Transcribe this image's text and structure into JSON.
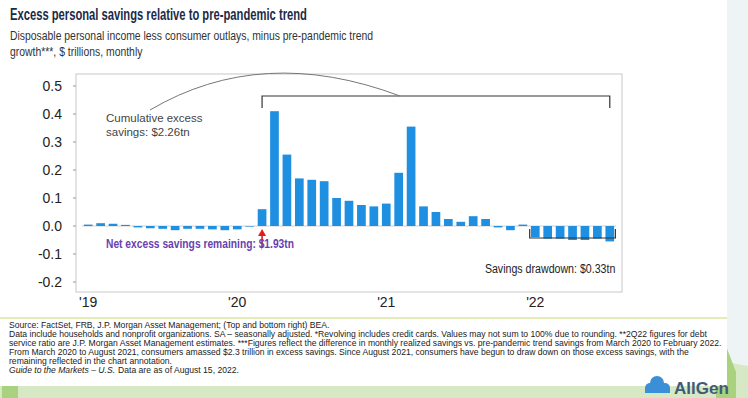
{
  "chart_data": {
    "type": "bar",
    "title": "Excess personal savings relative to pre-pandemic trend",
    "subtitle": "Disposable personal income less consumer outlays, minus pre-pandemic trend growth***, $ trillions, monthly",
    "categories": [
      "'19",
      null,
      null,
      null,
      null,
      null,
      null,
      null,
      null,
      null,
      null,
      null,
      "'20",
      null,
      null,
      null,
      null,
      null,
      null,
      null,
      null,
      null,
      null,
      null,
      "'21",
      null,
      null,
      null,
      null,
      null,
      null,
      null,
      null,
      null,
      null,
      null,
      "'22",
      null,
      null,
      null,
      null,
      null,
      null
    ],
    "values": [
      0.005,
      0.01,
      0.008,
      0.004,
      -0.005,
      -0.008,
      -0.01,
      -0.015,
      -0.01,
      -0.01,
      -0.012,
      -0.015,
      -0.012,
      -0.002,
      0.06,
      0.41,
      0.255,
      0.17,
      0.165,
      0.16,
      0.1,
      0.09,
      0.075,
      0.07,
      0.08,
      0.19,
      0.355,
      0.07,
      0.05,
      0.025,
      0.015,
      0.035,
      0.025,
      -0.005,
      -0.015,
      0.005,
      -0.04,
      -0.045,
      -0.045,
      -0.05,
      -0.05,
      -0.045,
      -0.055
    ],
    "color": "#1e8fe1",
    "ylim": [
      -0.2,
      0.5
    ],
    "yticks": [
      -0.2,
      -0.1,
      {
        "value": 0,
        "label": "0.0"
      },
      0.1,
      0.2,
      0.3,
      0.4,
      0.5
    ],
    "grid": false,
    "annotations": [
      "Cumulative excess savings: $2.26tn",
      "Net excess savings remaining: $1.93tn",
      "Savings drawdown: $0.33tn"
    ]
  },
  "footnotes": [
    "Source: FactSet, FRB, J.P. Morgan Asset Management; (Top and bottom right) BEA.",
    "Data include households and nonprofit organizations. SA – seasonally adjusted. *Revolving includes credit cards. Values may not sum to 100% due to rounding. **2Q22 figures for debt service ratio are J.P. Morgan Asset Management estimates. ***Figures reflect the difference in monthly realized savings vs. pre-pandemic trend savings from March 2020 to February 2022. From March 2020 to August 2021, consumers amassed $2.3 trillion in excess savings. Since August 2021, consumers have begun to draw down on those excess savings, with the remaining reflected in the chart annotation.",
    "Guide to the Markets – U.S.",
    "Data are as of August 15, 2022."
  ],
  "logo": "AllGen"
}
